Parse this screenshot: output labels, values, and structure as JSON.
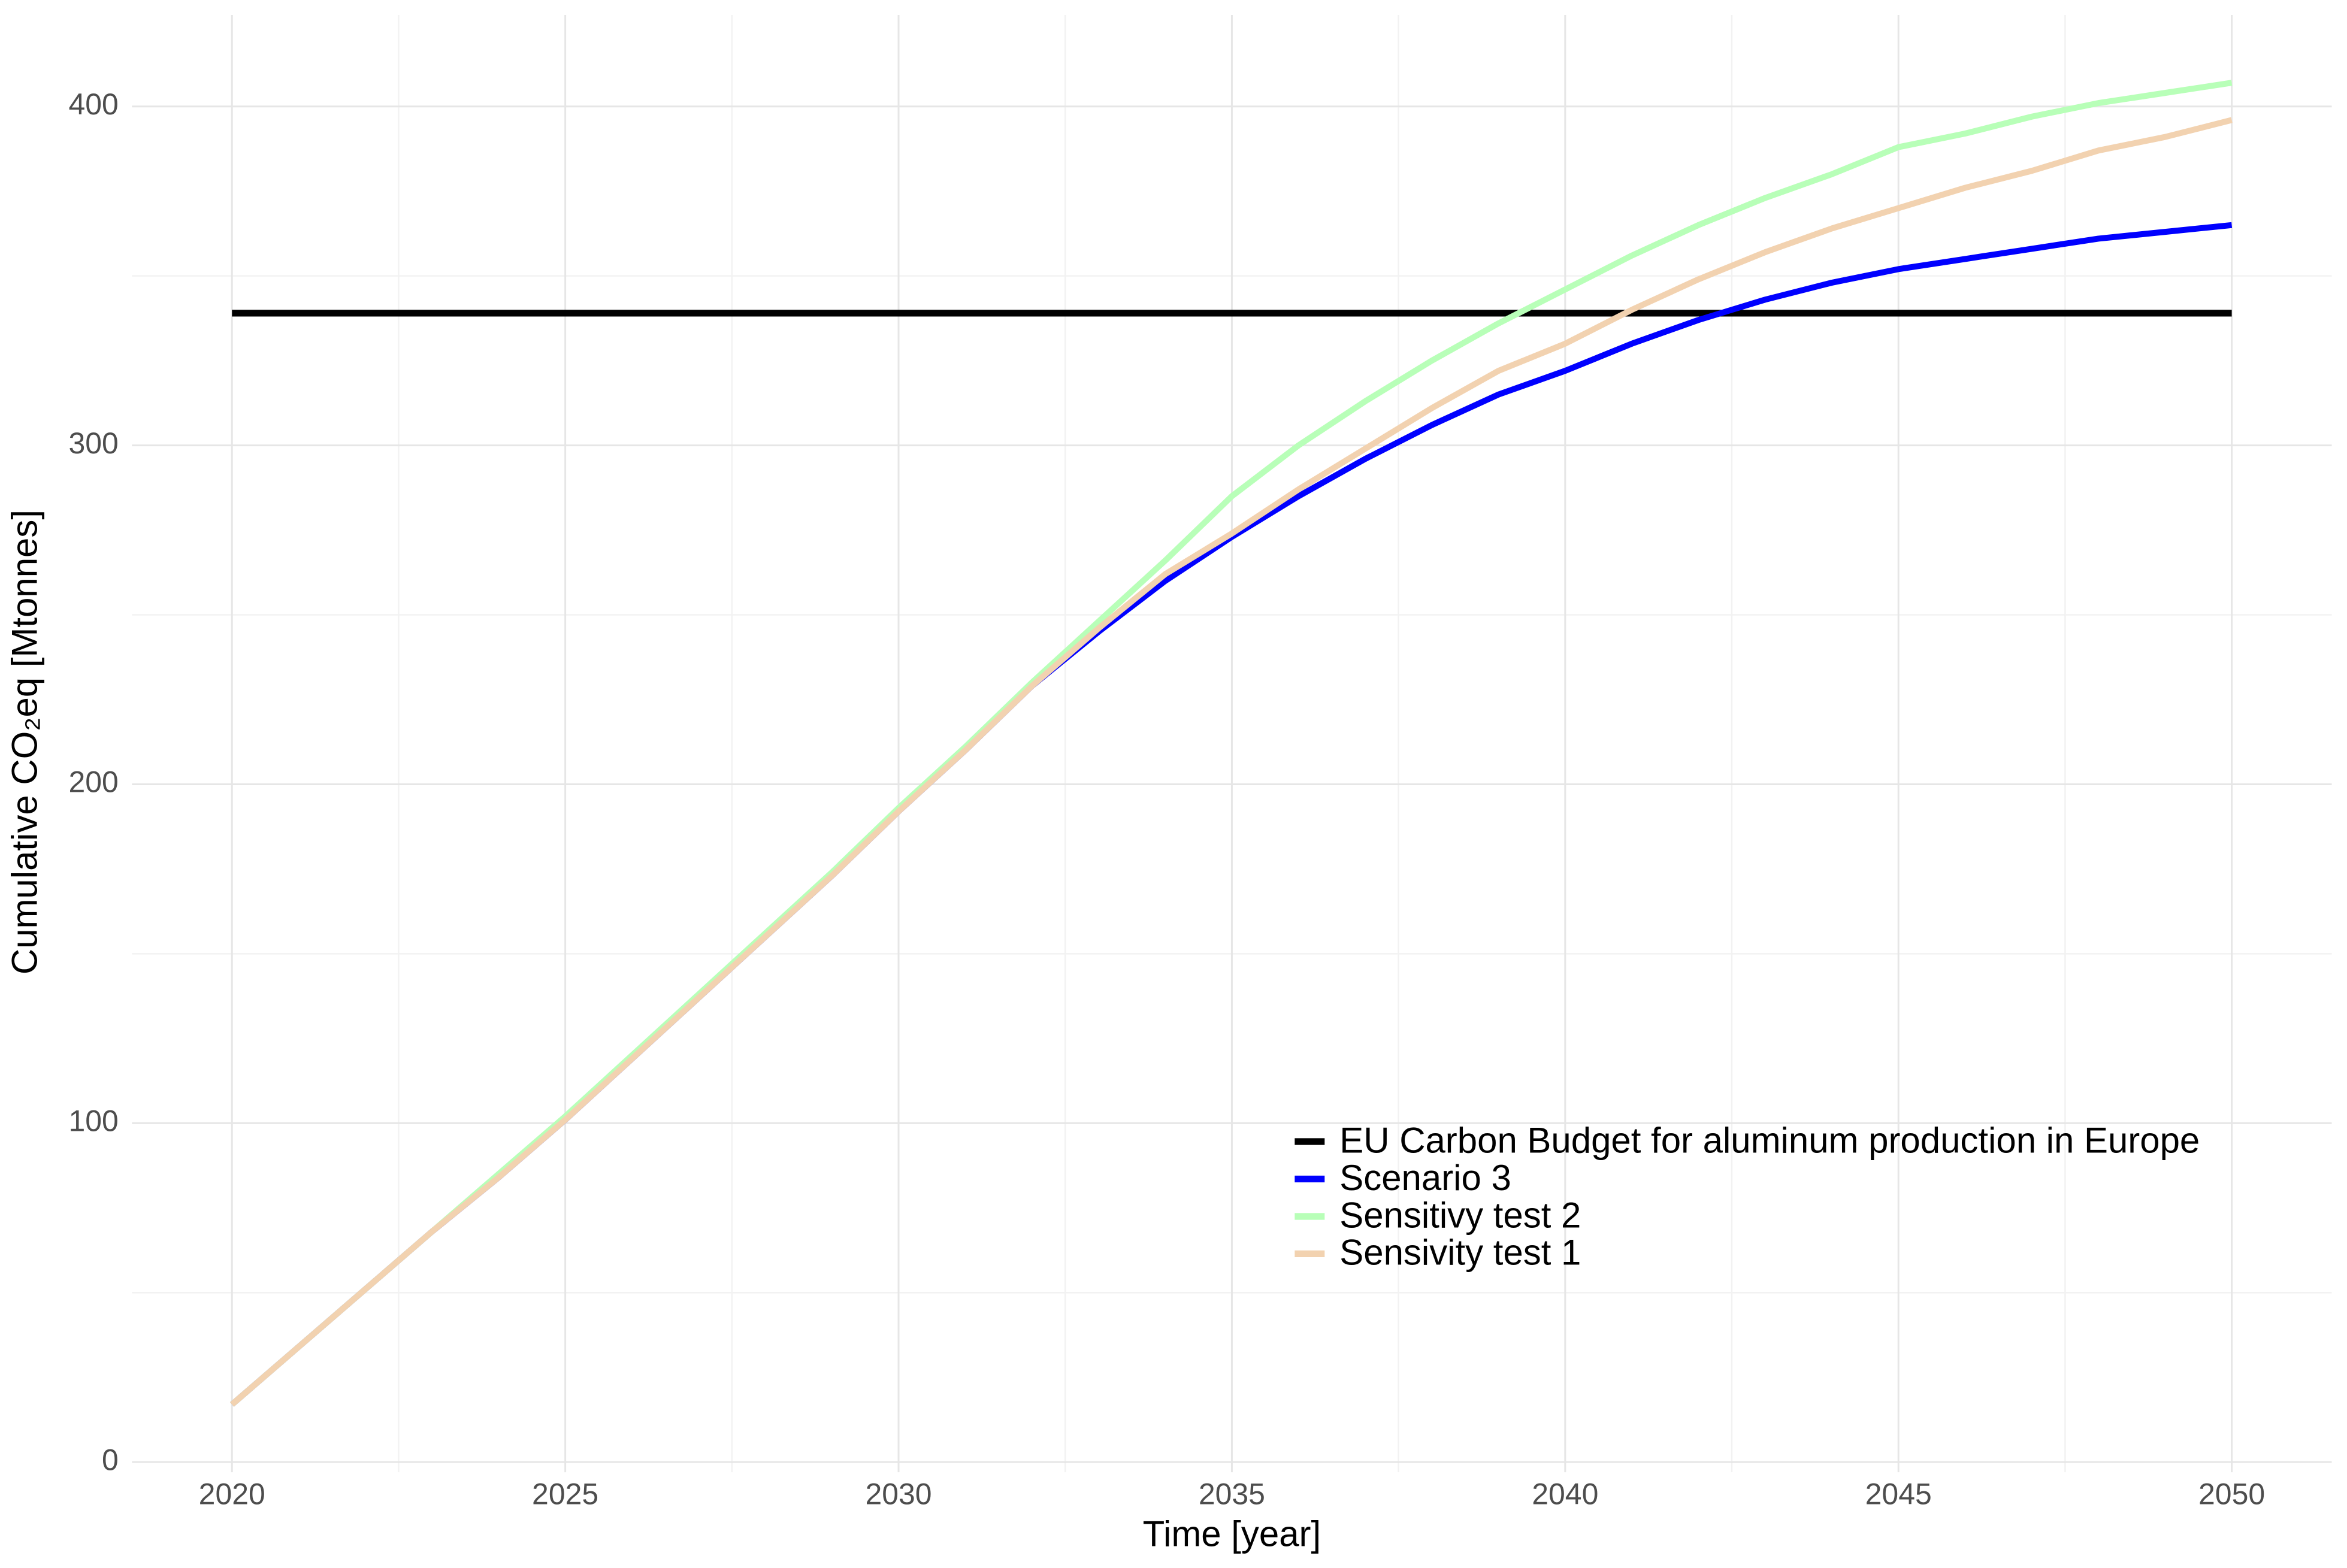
{
  "chart_data": {
    "type": "line",
    "x_label": "Time [year]",
    "y_label": "Cumulative CO₂eq [Mtonnes]",
    "x": [
      2020,
      2021,
      2022,
      2023,
      2024,
      2025,
      2026,
      2027,
      2028,
      2029,
      2030,
      2031,
      2032,
      2033,
      2034,
      2035,
      2036,
      2037,
      2038,
      2039,
      2040,
      2041,
      2042,
      2043,
      2044,
      2045,
      2046,
      2047,
      2048,
      2049,
      2050
    ],
    "series": [
      {
        "name": "EU Carbon Budget for aluminum production in Europe",
        "color": "#000000",
        "values": [
          339,
          339,
          339,
          339,
          339,
          339,
          339,
          339,
          339,
          339,
          339,
          339,
          339,
          339,
          339,
          339,
          339,
          339,
          339,
          339,
          339,
          339,
          339,
          339,
          339,
          339,
          339,
          339,
          339,
          339,
          339
        ]
      },
      {
        "name": "Scenario 3",
        "color": "#0000ff",
        "values": [
          17,
          34,
          51,
          68,
          84,
          101,
          119,
          137,
          155,
          173,
          192,
          210,
          229,
          245,
          260,
          273,
          285,
          296,
          306,
          315,
          322,
          330,
          337,
          343,
          348,
          352,
          355,
          358,
          361,
          363,
          365
        ]
      },
      {
        "name": "Sensitivy test 2",
        "color": "#b8ffb8",
        "values": [
          17,
          34,
          51,
          68,
          85,
          102,
          120,
          138,
          156,
          174,
          193,
          211,
          230,
          248,
          266,
          285,
          300,
          313,
          325,
          336,
          346,
          356,
          365,
          373,
          380,
          388,
          392,
          397,
          401,
          404,
          407
        ]
      },
      {
        "name": "Sensivity test 1",
        "color": "#f2d2b0",
        "values": [
          17,
          34,
          51,
          68,
          84,
          101,
          119,
          137,
          155,
          173,
          192,
          210,
          229,
          246,
          262,
          274,
          287,
          299,
          311,
          322,
          330,
          340,
          349,
          357,
          364,
          370,
          376,
          381,
          387,
          391,
          396
        ]
      }
    ],
    "xlim": [
      2018.5,
      2051.5
    ],
    "xticks": [
      2020,
      2025,
      2030,
      2035,
      2040,
      2045,
      2050
    ],
    "xminor": [
      2022.5,
      2027.5,
      2032.5,
      2037.5,
      2042.5,
      2047.5
    ],
    "ylim": [
      -3,
      427
    ],
    "yticks": [
      0,
      100,
      200,
      300,
      400
    ],
    "yminor": [
      50,
      150,
      250,
      350
    ],
    "grid": true,
    "legend": "bottom-right"
  }
}
